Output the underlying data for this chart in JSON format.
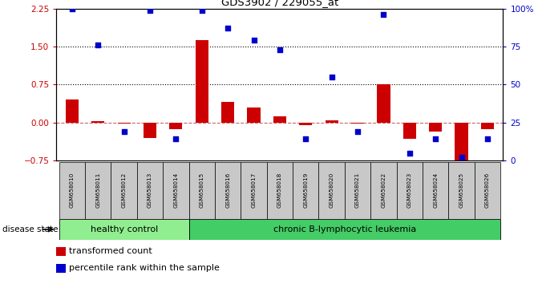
{
  "title": "GDS3902 / 229055_at",
  "samples": [
    "GSM658010",
    "GSM658011",
    "GSM658012",
    "GSM658013",
    "GSM658014",
    "GSM658015",
    "GSM658016",
    "GSM658017",
    "GSM658018",
    "GSM658019",
    "GSM658020",
    "GSM658021",
    "GSM658022",
    "GSM658023",
    "GSM658024",
    "GSM658025",
    "GSM658026"
  ],
  "red_values": [
    0.45,
    0.03,
    -0.02,
    -0.3,
    -0.13,
    1.63,
    0.4,
    0.3,
    0.12,
    -0.06,
    0.05,
    -0.02,
    0.75,
    -0.33,
    -0.18,
    -0.78,
    -0.13
  ],
  "blue_percentiles": [
    100,
    76,
    19,
    99,
    14,
    99,
    87,
    79,
    73,
    14,
    55,
    19,
    96,
    5,
    14,
    2,
    14
  ],
  "left_ylim": [
    -0.75,
    2.25
  ],
  "right_ylim": [
    0,
    100
  ],
  "left_yticks": [
    -0.75,
    0,
    0.75,
    1.5,
    2.25
  ],
  "right_yticks": [
    0,
    25,
    50,
    75,
    100
  ],
  "right_yticklabels": [
    "0",
    "25",
    "50",
    "75",
    "100%"
  ],
  "hlines": [
    1.5,
    0.75
  ],
  "group1_label": "healthy control",
  "group2_label": "chronic B-lymphocytic leukemia",
  "group1_count": 5,
  "group2_count": 12,
  "disease_state_label": "disease state",
  "legend_red": "transformed count",
  "legend_blue": "percentile rank within the sample",
  "bar_color": "#CC0000",
  "blue_color": "#0000CC",
  "zero_line_color": "#CC6666",
  "hline_color": "black",
  "group1_bg": "#90EE90",
  "group2_bg": "#44CC66",
  "label_bg": "#C8C8C8",
  "bar_width": 0.5
}
